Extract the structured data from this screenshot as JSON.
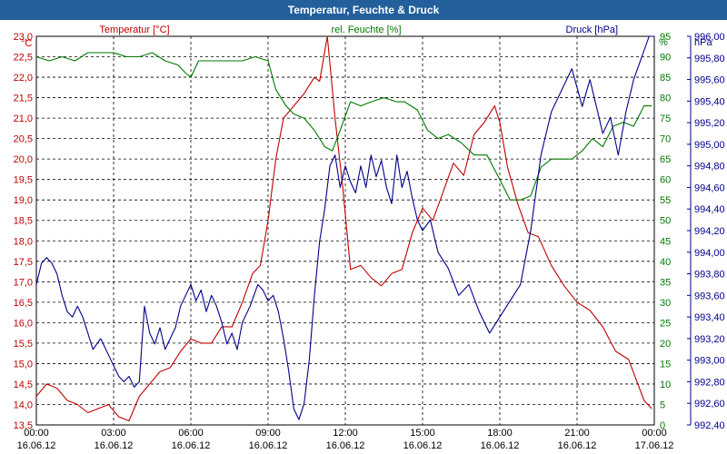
{
  "window": {
    "title": "Temperatur, Feuchte & Druck"
  },
  "colors": {
    "temperature": "#c00000",
    "humidity": "#007a00",
    "pressure": "#00008b",
    "grid": "#000000",
    "titlebar": "#225f9b"
  },
  "chart_data": {
    "type": "line",
    "title": "Temperatur, Feuchte & Druck",
    "x_range_hours": [
      0,
      24
    ],
    "x_ticks": [
      {
        "time": "00:00",
        "date": "16.06.12"
      },
      {
        "time": "03:00",
        "date": "16.06.12"
      },
      {
        "time": "06:00",
        "date": "16.06.12"
      },
      {
        "time": "09:00",
        "date": "16.06.12"
      },
      {
        "time": "12:00",
        "date": "16.06.12"
      },
      {
        "time": "15:00",
        "date": "16.06.12"
      },
      {
        "time": "18:00",
        "date": "16.06.12"
      },
      {
        "time": "21:00",
        "date": "16.06.12"
      },
      {
        "time": "00:00",
        "date": "17.06.12"
      }
    ],
    "axes": {
      "temperature": {
        "label": "Temperatur [°C]",
        "unit": "°C",
        "range": [
          13.5,
          23.0
        ],
        "ticks": [
          "13,5",
          "14,0",
          "14,5",
          "15,0",
          "15,5",
          "16,0",
          "16,5",
          "17,0",
          "17,5",
          "18,0",
          "18,5",
          "19,0",
          "19,5",
          "20,0",
          "20,5",
          "21,0",
          "21,5",
          "22,0",
          "22,5",
          "23,0"
        ]
      },
      "humidity": {
        "label": "rel. Feuchte [%]",
        "unit": "%",
        "range": [
          0,
          95
        ],
        "ticks": [
          "0",
          "5",
          "10",
          "15",
          "20",
          "25",
          "30",
          "35",
          "40",
          "45",
          "50",
          "55",
          "60",
          "65",
          "70",
          "75",
          "80",
          "85",
          "90",
          "95"
        ]
      },
      "pressure": {
        "label": "Druck [hPa]",
        "unit": "hPa",
        "range": [
          992.4,
          996.0
        ],
        "ticks": [
          "992,40",
          "992,60",
          "992,80",
          "993,00",
          "993,20",
          "993,40",
          "993,60",
          "993,80",
          "994,00",
          "994,20",
          "994,40",
          "994,60",
          "994,80",
          "995,00",
          "995,20",
          "995,40",
          "995,60",
          "995,80",
          "996,00"
        ]
      }
    },
    "series": [
      {
        "name": "Temperatur",
        "axis": "temperature",
        "x": [
          0,
          0.4,
          0.8,
          1.2,
          1.6,
          2.0,
          2.4,
          2.8,
          3.2,
          3.6,
          4.0,
          4.4,
          4.8,
          5.2,
          5.6,
          6.0,
          6.4,
          6.8,
          7.2,
          7.6,
          8.0,
          8.4,
          8.7,
          9.0,
          9.3,
          9.6,
          10.0,
          10.4,
          10.8,
          11.0,
          11.3,
          11.6,
          11.9,
          12.2,
          12.6,
          13.0,
          13.4,
          13.8,
          14.2,
          14.6,
          15.0,
          15.4,
          15.8,
          16.2,
          16.6,
          17.0,
          17.4,
          17.8,
          18.0,
          18.3,
          18.7,
          19.1,
          19.5,
          20.0,
          20.5,
          21.0,
          21.5,
          22.0,
          22.5,
          23.0,
          23.3,
          23.6,
          23.9
        ],
        "values": [
          14.2,
          14.5,
          14.4,
          14.1,
          14.0,
          13.8,
          13.9,
          14.0,
          13.7,
          13.6,
          14.2,
          14.5,
          14.8,
          14.9,
          15.3,
          15.6,
          15.5,
          15.5,
          15.9,
          15.9,
          16.5,
          17.2,
          17.4,
          18.5,
          20.0,
          21.0,
          21.3,
          21.6,
          22.0,
          21.9,
          23.0,
          21.0,
          19.3,
          17.3,
          17.4,
          17.1,
          16.9,
          17.2,
          17.3,
          18.2,
          18.8,
          18.5,
          19.2,
          19.9,
          19.6,
          20.6,
          20.9,
          21.3,
          20.9,
          19.8,
          18.9,
          18.2,
          18.1,
          17.4,
          16.9,
          16.5,
          16.3,
          15.9,
          15.3,
          15.1,
          14.6,
          14.1,
          13.9
        ]
      },
      {
        "name": "rel. Feuchte",
        "axis": "humidity",
        "x": [
          0,
          0.5,
          1.0,
          1.5,
          2.0,
          2.5,
          3.0,
          3.5,
          4.0,
          4.5,
          5.0,
          5.5,
          5.8,
          6.0,
          6.3,
          7.0,
          8.0,
          8.5,
          9.0,
          9.3,
          9.7,
          10.0,
          10.4,
          10.8,
          11.2,
          11.5,
          11.8,
          12.2,
          12.6,
          13.0,
          13.5,
          14.0,
          14.3,
          14.8,
          15.2,
          15.6,
          16.0,
          16.5,
          17.0,
          17.5,
          18.0,
          18.4,
          18.8,
          19.2,
          19.6,
          20.0,
          20.4,
          20.8,
          21.2,
          21.6,
          22.0,
          22.4,
          22.8,
          23.2,
          23.6,
          23.9
        ],
        "values": [
          90,
          89,
          90,
          89,
          91,
          91,
          91,
          90,
          90,
          91,
          89,
          88,
          86,
          85,
          89,
          89,
          89,
          90,
          89,
          82,
          78,
          76,
          75,
          72,
          68,
          67,
          72,
          79,
          78,
          79,
          80,
          79,
          79,
          77,
          72,
          70,
          71,
          69,
          66,
          66,
          60,
          55,
          55,
          56,
          63,
          65,
          65,
          65,
          67,
          70,
          68,
          73,
          74,
          73,
          78,
          78
        ]
      },
      {
        "name": "Druck",
        "axis": "pressure",
        "x": [
          0,
          0.2,
          0.4,
          0.6,
          0.8,
          1.0,
          1.2,
          1.4,
          1.6,
          1.8,
          2.0,
          2.2,
          2.5,
          2.8,
          3.0,
          3.2,
          3.4,
          3.6,
          3.8,
          4.0,
          4.2,
          4.4,
          4.6,
          4.8,
          5.0,
          5.2,
          5.4,
          5.6,
          5.8,
          6.0,
          6.2,
          6.4,
          6.6,
          6.8,
          7.0,
          7.2,
          7.4,
          7.6,
          7.8,
          8.0,
          8.3,
          8.6,
          8.8,
          9.0,
          9.2,
          9.4,
          9.6,
          9.8,
          10.0,
          10.2,
          10.4,
          10.6,
          10.8,
          11.0,
          11.2,
          11.4,
          11.6,
          11.8,
          12.0,
          12.2,
          12.4,
          12.6,
          12.8,
          13.0,
          13.2,
          13.4,
          13.6,
          13.8,
          14.0,
          14.2,
          14.4,
          14.6,
          14.8,
          15.0,
          15.3,
          15.6,
          16.0,
          16.4,
          16.8,
          17.2,
          17.6,
          18.0,
          18.4,
          18.8,
          19.2,
          19.6,
          20.0,
          20.4,
          20.8,
          21.2,
          21.5,
          21.8,
          22.0,
          22.3,
          22.6,
          22.9,
          23.2,
          23.5,
          23.8,
          24.0
        ],
        "values": [
          993.7,
          993.9,
          993.95,
          993.9,
          993.8,
          993.6,
          993.45,
          993.4,
          993.5,
          993.4,
          993.25,
          993.1,
          993.2,
          993.05,
          992.95,
          992.85,
          992.8,
          992.85,
          992.75,
          992.8,
          993.5,
          993.25,
          993.15,
          993.3,
          993.1,
          993.2,
          993.3,
          993.5,
          993.6,
          993.7,
          993.55,
          993.65,
          993.45,
          993.6,
          993.5,
          993.35,
          993.15,
          993.25,
          993.1,
          993.35,
          993.5,
          993.7,
          993.65,
          993.55,
          993.6,
          993.45,
          993.2,
          992.9,
          992.55,
          992.45,
          992.6,
          993.0,
          993.6,
          994.1,
          994.4,
          994.8,
          994.9,
          994.6,
          994.8,
          994.65,
          994.55,
          994.8,
          994.6,
          994.9,
          994.7,
          994.85,
          994.6,
          994.45,
          994.9,
          994.6,
          994.75,
          994.5,
          994.3,
          994.2,
          994.3,
          994.0,
          993.85,
          993.6,
          993.7,
          993.45,
          993.25,
          993.4,
          993.55,
          993.7,
          994.2,
          994.9,
          995.3,
          995.5,
          995.7,
          995.35,
          995.6,
          995.3,
          995.1,
          995.25,
          994.9,
          995.3,
          995.6,
          995.8,
          996.0,
          996.0
        ]
      }
    ]
  }
}
